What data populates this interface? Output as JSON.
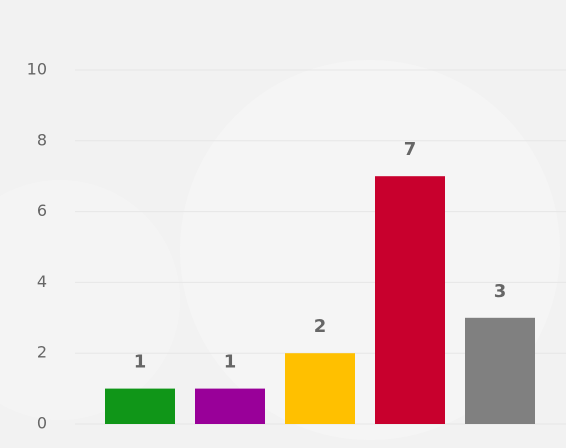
{
  "chart_data": {
    "type": "bar",
    "categories": [
      null,
      null,
      null,
      null,
      null
    ],
    "values": [
      1,
      1,
      2,
      7,
      3
    ],
    "colors": [
      "#109618",
      "#990099",
      "#ffc000",
      "#c8002d",
      "#808080"
    ],
    "ylim": [
      0,
      10
    ],
    "yticks": [
      0,
      2,
      4,
      6,
      8,
      10
    ],
    "grid": true,
    "data_labels": true
  }
}
